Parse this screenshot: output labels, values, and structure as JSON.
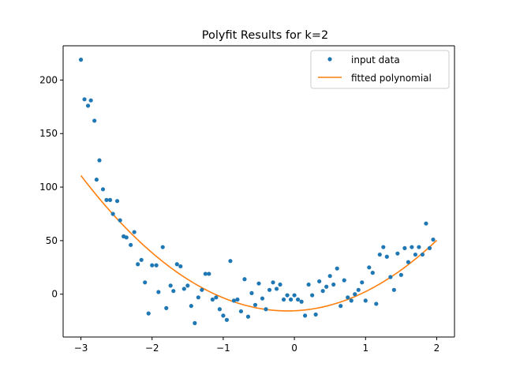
{
  "chart_data": {
    "type": "scatter",
    "title": "Polyfit Results for k=2",
    "xlabel": "",
    "ylabel": "",
    "xlim": [
      -3.25,
      2.25
    ],
    "ylim": [
      -40,
      232
    ],
    "xticks": [
      -3,
      -2,
      -1,
      0,
      1,
      2
    ],
    "yticks": [
      0,
      50,
      100,
      150,
      200
    ],
    "xtick_labels": [
      "−3",
      "−2",
      "−1",
      "0",
      "1",
      "2"
    ],
    "ytick_labels": [
      "0",
      "50",
      "100",
      "150",
      "200"
    ],
    "grid": false,
    "legend_position": "top-right",
    "series": [
      {
        "name": "input data",
        "kind": "scatter",
        "color": "#1f77b4",
        "points": [
          [
            -3.0,
            219
          ],
          [
            -2.95,
            182
          ],
          [
            -2.9,
            176
          ],
          [
            -2.86,
            181
          ],
          [
            -2.81,
            162
          ],
          [
            -2.74,
            125
          ],
          [
            -2.78,
            107
          ],
          [
            -2.69,
            98
          ],
          [
            -2.64,
            88
          ],
          [
            -2.59,
            88
          ],
          [
            -2.55,
            75
          ],
          [
            -2.49,
            87
          ],
          [
            -2.45,
            69
          ],
          [
            -2.4,
            54
          ],
          [
            -2.36,
            53
          ],
          [
            -2.3,
            46
          ],
          [
            -2.25,
            58
          ],
          [
            -2.2,
            28
          ],
          [
            -2.15,
            32
          ],
          [
            -2.1,
            11
          ],
          [
            -2.05,
            -18
          ],
          [
            -2.0,
            27
          ],
          [
            -1.94,
            27
          ],
          [
            -1.91,
            2
          ],
          [
            -1.85,
            44
          ],
          [
            -1.8,
            -13
          ],
          [
            -1.74,
            8
          ],
          [
            -1.7,
            3
          ],
          [
            -1.65,
            28
          ],
          [
            -1.6,
            26
          ],
          [
            -1.55,
            5
          ],
          [
            -1.5,
            8
          ],
          [
            -1.45,
            -11
          ],
          [
            -1.4,
            -27
          ],
          [
            -1.35,
            -3
          ],
          [
            -1.3,
            4
          ],
          [
            -1.25,
            19
          ],
          [
            -1.2,
            19
          ],
          [
            -1.15,
            -5
          ],
          [
            -1.1,
            -3
          ],
          [
            -1.05,
            -14
          ],
          [
            -1.0,
            -20
          ],
          [
            -0.95,
            -24
          ],
          [
            -0.9,
            31
          ],
          [
            -0.85,
            -6
          ],
          [
            -0.8,
            -5
          ],
          [
            -0.75,
            -16
          ],
          [
            -0.7,
            14
          ],
          [
            -0.65,
            -21
          ],
          [
            -0.6,
            1
          ],
          [
            -0.55,
            -10
          ],
          [
            -0.5,
            10
          ],
          [
            -0.45,
            -4
          ],
          [
            -0.4,
            -14
          ],
          [
            -0.35,
            4
          ],
          [
            -0.3,
            11
          ],
          [
            -0.25,
            5
          ],
          [
            -0.2,
            9
          ],
          [
            -0.15,
            -5
          ],
          [
            -0.1,
            -1
          ],
          [
            -0.05,
            -5
          ],
          [
            0.0,
            -1
          ],
          [
            0.05,
            -5
          ],
          [
            0.1,
            -7
          ],
          [
            0.15,
            -20
          ],
          [
            0.2,
            9
          ],
          [
            0.25,
            -1
          ],
          [
            0.3,
            -19
          ],
          [
            0.35,
            12
          ],
          [
            0.4,
            3
          ],
          [
            0.45,
            7
          ],
          [
            0.5,
            17
          ],
          [
            0.55,
            9
          ],
          [
            0.6,
            24
          ],
          [
            0.65,
            -11
          ],
          [
            0.7,
            13
          ],
          [
            0.75,
            -3
          ],
          [
            0.8,
            -6
          ],
          [
            0.85,
            0
          ],
          [
            0.9,
            4
          ],
          [
            0.95,
            11
          ],
          [
            1.0,
            -6
          ],
          [
            1.05,
            25
          ],
          [
            1.1,
            20
          ],
          [
            1.15,
            -9
          ],
          [
            1.2,
            37
          ],
          [
            1.25,
            44
          ],
          [
            1.3,
            35
          ],
          [
            1.35,
            16
          ],
          [
            1.4,
            4
          ],
          [
            1.45,
            38
          ],
          [
            1.5,
            18
          ],
          [
            1.55,
            43
          ],
          [
            1.6,
            30
          ],
          [
            1.65,
            44
          ],
          [
            1.7,
            37
          ],
          [
            1.75,
            44
          ],
          [
            1.8,
            37
          ],
          [
            1.85,
            66
          ],
          [
            1.9,
            43
          ],
          [
            1.95,
            51
          ]
        ]
      },
      {
        "name": "fitted polynomial",
        "kind": "line",
        "color": "#ff7f0e",
        "coefficients": [
          15.0,
          2.9,
          -15.5
        ],
        "x_range": [
          -3.0,
          2.0
        ]
      }
    ]
  }
}
